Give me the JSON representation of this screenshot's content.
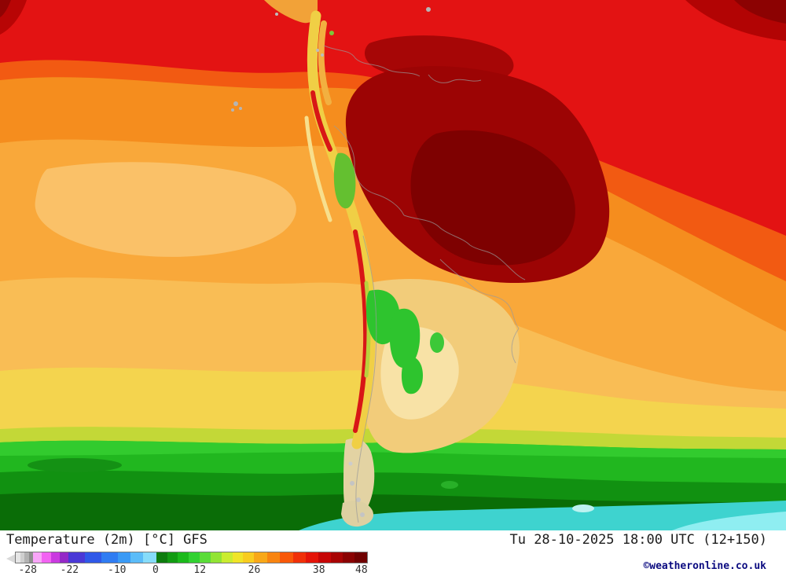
{
  "footer": {
    "title": "Temperature (2m) [°C] GFS",
    "datetime": "Tu 28-10-2025 18:00 UTC (12+150)",
    "copyright": "©weatheronline.co.uk"
  },
  "legend": {
    "unit": "°C",
    "ticks": [
      "-28",
      "-22",
      "-10",
      "0",
      "12",
      "26",
      "38",
      "48"
    ],
    "tick_positions_pct": [
      3.4,
      15.3,
      28.8,
      39.8,
      52.4,
      67.9,
      86.3,
      98.4
    ],
    "segments": [
      {
        "c": "#e6e6e6",
        "w": 1.25
      },
      {
        "c": "#cfcfcf",
        "w": 1.25
      },
      {
        "c": "#b2b2b2",
        "w": 1.25
      },
      {
        "c": "#8e8e8e",
        "w": 1.25
      },
      {
        "c": "#f9a6f9",
        "w": 2.5
      },
      {
        "c": "#f263f2",
        "w": 2.5
      },
      {
        "c": "#ca3ae0",
        "w": 2.5
      },
      {
        "c": "#9429c7",
        "w": 2.5
      },
      {
        "c": "#4a38d6",
        "w": 4.67
      },
      {
        "c": "#2f58e8",
        "w": 4.67
      },
      {
        "c": "#2f7cf2",
        "w": 4.66
      },
      {
        "c": "#3a9af5",
        "w": 3.67
      },
      {
        "c": "#5bbcf8",
        "w": 3.67
      },
      {
        "c": "#86dcfa",
        "w": 3.66
      },
      {
        "c": "#0e7c0e",
        "w": 3.1
      },
      {
        "c": "#129b12",
        "w": 3.1
      },
      {
        "c": "#1bb91b",
        "w": 3.1
      },
      {
        "c": "#31d131",
        "w": 3.1
      },
      {
        "c": "#5adc38",
        "w": 3.1
      },
      {
        "c": "#92e434",
        "w": 3.1
      },
      {
        "c": "#caec30",
        "w": 3.1
      },
      {
        "c": "#f0e428",
        "w": 3.1
      },
      {
        "c": "#f8cc20",
        "w": 3.1
      },
      {
        "c": "#f8a818",
        "w": 3.68
      },
      {
        "c": "#f88410",
        "w": 3.68
      },
      {
        "c": "#f85808",
        "w": 3.68
      },
      {
        "c": "#f03008",
        "w": 3.68
      },
      {
        "c": "#e41408",
        "w": 3.68
      },
      {
        "c": "#c60606",
        "w": 3.43
      },
      {
        "c": "#a80404",
        "w": 3.42
      },
      {
        "c": "#8a0202",
        "w": 3.42
      },
      {
        "c": "#700101",
        "w": 3.43
      }
    ]
  },
  "map": {
    "palette": {
      "hot_red": "#e31313",
      "dark_red": "#9c0404",
      "darkest_red": "#7e0101",
      "orange_red": "#f25a12",
      "orange": "#f58d1e",
      "light_orange": "#f9a83a",
      "amber": "#f9bd55",
      "yellow": "#f4d44e",
      "yellow_green": "#c3d837",
      "green": "#21b71f",
      "mid_green": "#119111",
      "dark_green": "#0a6d07",
      "cyan": "#3ed3cf",
      "light_cyan": "#8feef1",
      "andes_yellow": "#f0cf45",
      "lowland_tan": "#f2cc7a",
      "border_gray": "#9a9a9a"
    }
  }
}
